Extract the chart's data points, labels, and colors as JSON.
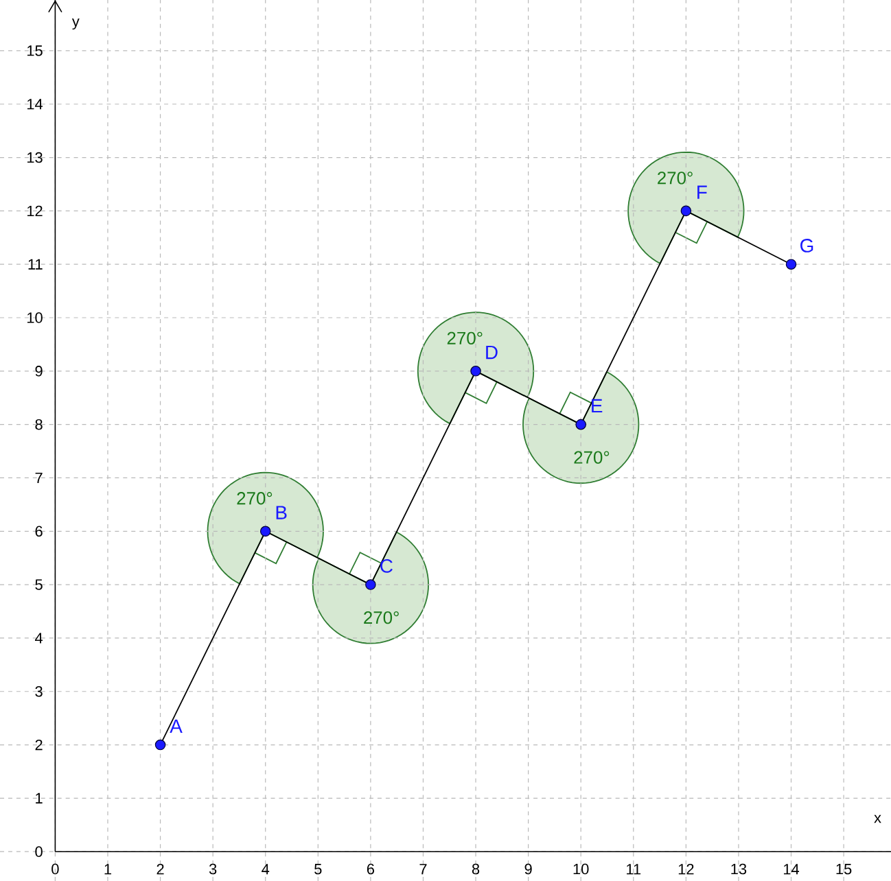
{
  "chart_data": {
    "type": "line",
    "xlabel": "x",
    "ylabel": "y",
    "x": [
      2,
      4,
      6,
      8,
      10,
      12,
      14
    ],
    "series": [
      {
        "color": "#000000",
        "values": [
          2,
          6,
          5,
          9,
          8,
          12,
          11
        ]
      },
      {
        "type": "scatter",
        "color": "#1a1aff",
        "values": [
          2,
          6,
          5,
          9,
          8,
          12,
          11
        ]
      }
    ],
    "xlim": [
      -1.05,
      15.9
    ],
    "ylim": [
      -0.55,
      15.95
    ],
    "xticks": [
      0,
      1,
      2,
      3,
      4,
      5,
      6,
      7,
      8,
      9,
      10,
      11,
      12,
      13,
      14,
      15
    ],
    "yticks": [
      0,
      1,
      2,
      3,
      4,
      5,
      6,
      7,
      8,
      9,
      10,
      11,
      12,
      13,
      14,
      15
    ],
    "grid": true,
    "marker": "circle",
    "annotations": [
      {
        "text": "A",
        "x": 2,
        "y": 2
      },
      {
        "text": "B",
        "x": 4,
        "y": 6
      },
      {
        "text": "C",
        "x": 6,
        "y": 5
      },
      {
        "text": "D",
        "x": 8,
        "y": 9
      },
      {
        "text": "E",
        "x": 10,
        "y": 8
      },
      {
        "text": "F",
        "x": 12,
        "y": 12
      },
      {
        "text": "G",
        "x": 14,
        "y": 11
      },
      {
        "text": "270°",
        "x": 4,
        "y": 6
      },
      {
        "text": "270°",
        "x": 6,
        "y": 5
      },
      {
        "text": "270°",
        "x": 8,
        "y": 9
      },
      {
        "text": "270°",
        "x": 10,
        "y": 8
      },
      {
        "text": "270°",
        "x": 12,
        "y": 12
      }
    ]
  }
}
